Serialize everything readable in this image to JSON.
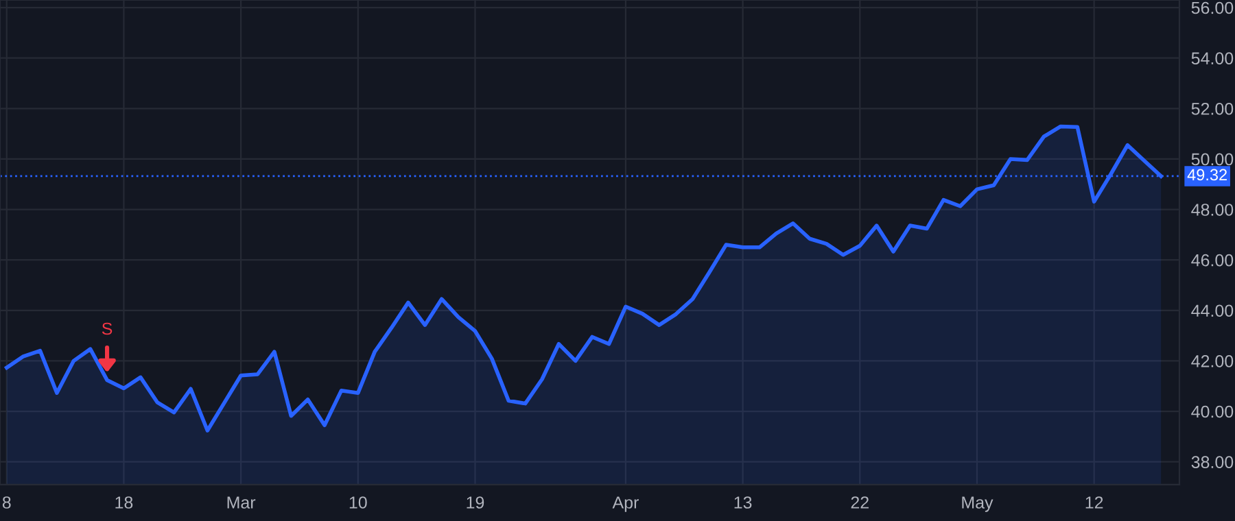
{
  "chart_data": {
    "type": "area",
    "categories": [
      "8",
      null,
      null,
      null,
      null,
      null,
      null,
      "18",
      null,
      null,
      null,
      null,
      null,
      null,
      "Mar",
      null,
      null,
      null,
      null,
      null,
      null,
      "10",
      null,
      null,
      null,
      null,
      null,
      null,
      "19",
      null,
      null,
      null,
      null,
      null,
      null,
      null,
      null,
      "Apr",
      null,
      null,
      null,
      null,
      null,
      null,
      "13",
      null,
      null,
      null,
      null,
      null,
      null,
      "22",
      null,
      null,
      null,
      null,
      null,
      null,
      "May",
      null,
      null,
      null,
      null,
      null,
      null,
      "12",
      null,
      null,
      null,
      null
    ],
    "series": [
      {
        "color": "#2962ff",
        "values": [
          41.73,
          42.18,
          42.4,
          40.73,
          42.0,
          42.47,
          41.24,
          40.91,
          41.35,
          40.36,
          39.96,
          40.89,
          39.24,
          40.33,
          41.42,
          41.47,
          42.36,
          39.82,
          40.47,
          39.45,
          40.82,
          40.73,
          42.36,
          43.31,
          44.31,
          43.42,
          44.45,
          43.73,
          43.18,
          42.09,
          40.42,
          40.31,
          41.27,
          42.67,
          42.0,
          42.95,
          42.67,
          44.15,
          43.87,
          43.42,
          43.85,
          44.45,
          45.51,
          46.6,
          46.5,
          46.5,
          47.05,
          47.45,
          46.84,
          46.64,
          46.2,
          46.56,
          47.36,
          46.33,
          47.36,
          47.24,
          48.38,
          48.13,
          48.8,
          48.96,
          50.0,
          49.96,
          50.89,
          51.29,
          51.27,
          48.31,
          49.4,
          50.55,
          49.93,
          49.32
        ]
      }
    ],
    "ylim": [
      37.1,
      56.3
    ],
    "yticks": [
      {
        "value": 38,
        "label": "38.00"
      },
      {
        "value": 40,
        "label": "40.00"
      },
      {
        "value": 42,
        "label": "42.00"
      },
      {
        "value": 44,
        "label": "44.00"
      },
      {
        "value": 46,
        "label": "46.00"
      },
      {
        "value": 48,
        "label": "48.00"
      },
      {
        "value": 50,
        "label": "50.00"
      },
      {
        "value": 52,
        "label": "52.00"
      },
      {
        "value": 54,
        "label": "54.00"
      },
      {
        "value": 56,
        "label": "56.00"
      }
    ],
    "ref_lines": [
      {
        "axis": "y",
        "value": 49.32,
        "label": "49.32",
        "color": "#2962ff",
        "line_style": "dotted"
      }
    ],
    "annotations": [
      {
        "text": "S",
        "y": 41.24
      }
    ],
    "grid": true
  }
}
